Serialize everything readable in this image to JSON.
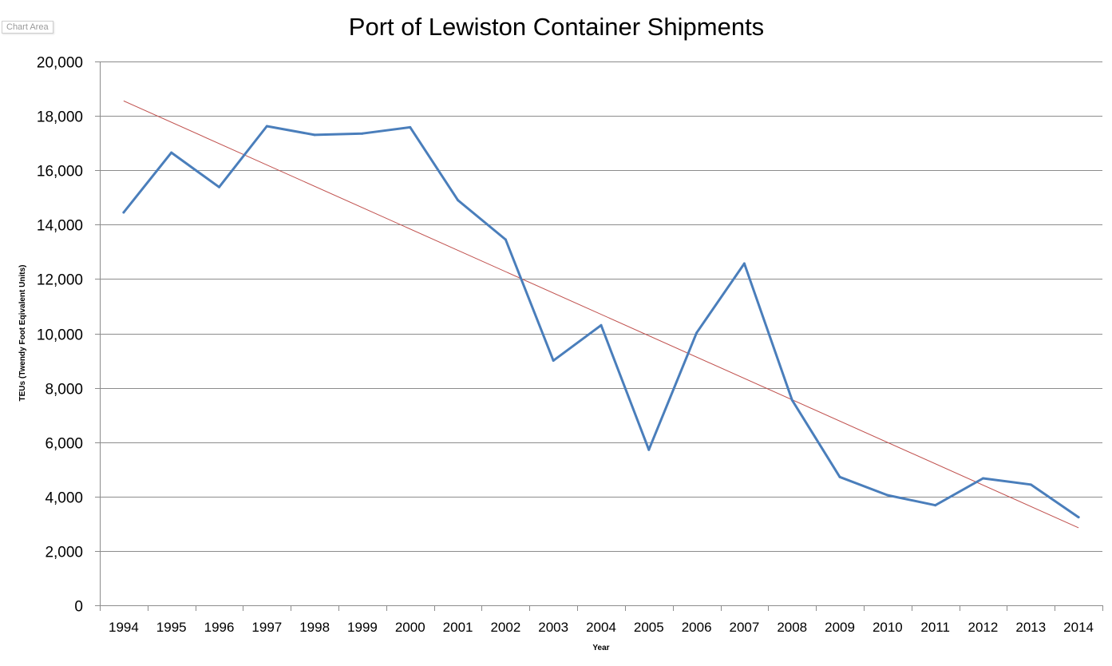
{
  "chart_area_label": "Chart Area",
  "chart_data": {
    "type": "line",
    "title": "Port of Lewiston Container Shipments",
    "xlabel": "Year",
    "ylabel": "TEUs (Twendy Foot Eqivalent Units)",
    "categories": [
      "1994",
      "1995",
      "1996",
      "1997",
      "1998",
      "1999",
      "2000",
      "2001",
      "2002",
      "2003",
      "2004",
      "2005",
      "2006",
      "2007",
      "2008",
      "2009",
      "2010",
      "2011",
      "2012",
      "2013",
      "2014"
    ],
    "ylim": [
      0,
      20000
    ],
    "yticks": [
      0,
      2000,
      4000,
      6000,
      8000,
      10000,
      12000,
      14000,
      16000,
      18000,
      20000
    ],
    "ytick_labels": [
      "0",
      "2,000",
      "4,000",
      "6,000",
      "8,000",
      "10,000",
      "12,000",
      "14,000",
      "16,000",
      "18,000",
      "20,000"
    ],
    "grid": true,
    "legend": "none",
    "series": [
      {
        "values": [
          14450,
          16650,
          15380,
          17620,
          17300,
          17350,
          17580,
          14900,
          13450,
          9000,
          10300,
          5720,
          10020,
          12570,
          7550,
          4720,
          4050,
          3680,
          4670,
          4440,
          3240
        ],
        "color": "#4a7ebb"
      }
    ],
    "trendline": {
      "type": "linear",
      "start": 18550,
      "end": 2850,
      "color": "#c0504d"
    }
  }
}
